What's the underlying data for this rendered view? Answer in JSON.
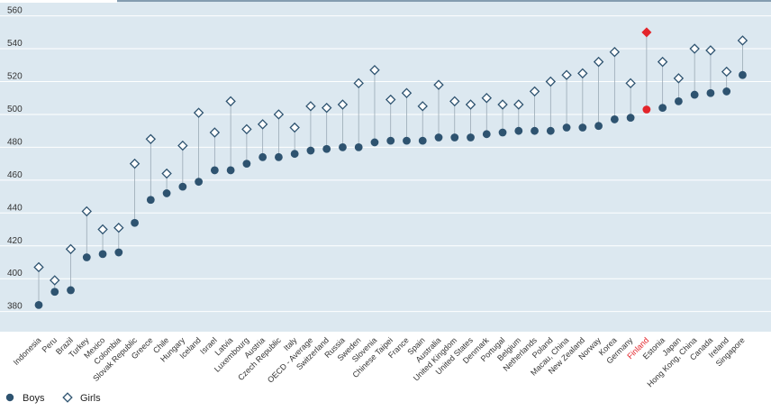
{
  "chart_data": {
    "type": "dot",
    "title": "",
    "xlabel": "",
    "ylabel": "",
    "ylim": [
      375,
      562
    ],
    "yticks": [
      380,
      400,
      420,
      440,
      460,
      480,
      500,
      520,
      540,
      560
    ],
    "grid": true,
    "legend_position": "bottom-left",
    "highlight_category": "Finland",
    "colors": {
      "plot_bg": "#dce8f0",
      "grid": "#ffffff",
      "boys": "#2e5370",
      "girls": "#2e5370",
      "connector": "#9aa9b5",
      "highlight": "#e3252b",
      "tick_text": "#333333",
      "label_text": "#333333"
    },
    "categories": [
      "Indonesia",
      "Peru",
      "Brazil",
      "Turkey",
      "Mexico",
      "Colombia",
      "Slovak Republic",
      "Greece",
      "Chile",
      "Hungary",
      "Iceland",
      "Israel",
      "Latvia",
      "Luxembourg",
      "Austria",
      "Czech Republic",
      "Italy",
      "OECD - Average",
      "Switzerland",
      "Russia",
      "Sweden",
      "Slovenia",
      "Chinese Taipei",
      "France",
      "Spain",
      "Australia",
      "United Kingdom",
      "United States",
      "Denmark",
      "Portugal",
      "Belgium",
      "Netherlands",
      "Poland",
      "Macau, China",
      "New Zealand",
      "Norway",
      "Korea",
      "Germany",
      "Finland",
      "Estonia",
      "Japan",
      "Hong Kong, China",
      "Canada",
      "Ireland",
      "Singapore"
    ],
    "series": [
      {
        "name": "Boys",
        "marker": "circle",
        "values": [
          384,
          392,
          393,
          413,
          415,
          416,
          434,
          448,
          452,
          456,
          459,
          466,
          466,
          470,
          474,
          474,
          476,
          478,
          479,
          480,
          480,
          483,
          484,
          484,
          484,
          486,
          486,
          486,
          488,
          489,
          490,
          490,
          490,
          492,
          492,
          493,
          497,
          498,
          503,
          504,
          508,
          512,
          513,
          514,
          524
        ]
      },
      {
        "name": "Girls",
        "marker": "diamond",
        "values": [
          407,
          399,
          418,
          441,
          430,
          431,
          470,
          485,
          464,
          481,
          501,
          489,
          508,
          491,
          494,
          500,
          492,
          505,
          504,
          506,
          519,
          527,
          509,
          513,
          505,
          518,
          508,
          506,
          510,
          506,
          506,
          514,
          520,
          524,
          525,
          532,
          538,
          519,
          550,
          532,
          522,
          540,
          539,
          526,
          545
        ]
      }
    ],
    "legend": [
      {
        "label": "Boys",
        "marker": "circle"
      },
      {
        "label": "Girls",
        "marker": "diamond"
      }
    ]
  }
}
